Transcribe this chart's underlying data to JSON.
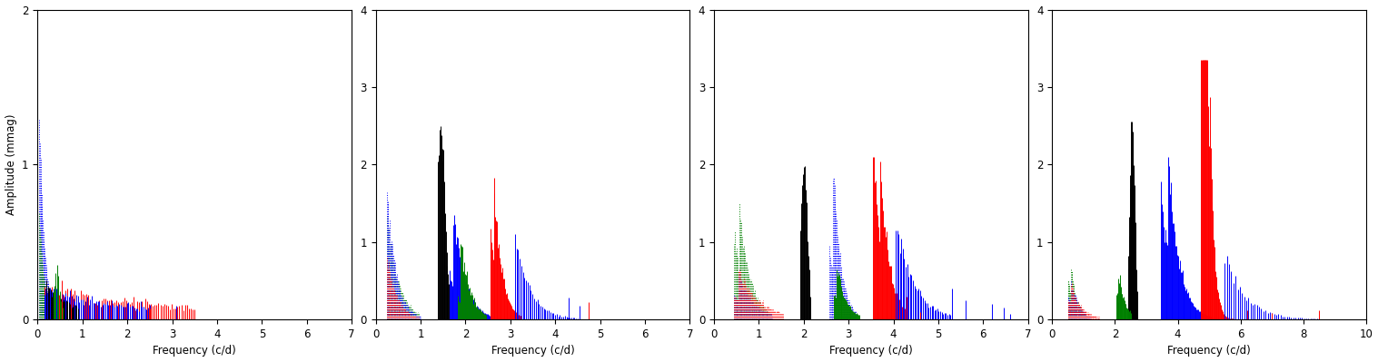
{
  "panels": [
    {
      "xlim": [
        0,
        7
      ],
      "ylim": [
        0,
        2
      ],
      "yticks": [
        0,
        1,
        2
      ],
      "xticks": [
        0,
        1,
        2,
        3,
        4,
        5,
        6,
        7
      ],
      "ylabel": "Amplitude (mmag)",
      "xlabel": "Frequency (c/d)"
    },
    {
      "xlim": [
        0,
        7
      ],
      "ylim": [
        0,
        4
      ],
      "yticks": [
        0,
        1,
        2,
        3,
        4
      ],
      "xticks": [
        0,
        1,
        2,
        3,
        4,
        5,
        6,
        7
      ],
      "ylabel": "",
      "xlabel": "Frequency (c/d)"
    },
    {
      "xlim": [
        0,
        7
      ],
      "ylim": [
        0,
        4
      ],
      "yticks": [
        0,
        1,
        2,
        3,
        4
      ],
      "xticks": [
        0,
        1,
        2,
        3,
        4,
        5,
        6,
        7
      ],
      "ylabel": "",
      "xlabel": "Frequency (c/d)"
    },
    {
      "xlim": [
        0,
        10
      ],
      "ylim": [
        0,
        4
      ],
      "yticks": [
        0,
        1,
        2,
        3,
        4
      ],
      "xticks": [
        0,
        2,
        4,
        6,
        8,
        10
      ],
      "ylabel": "",
      "xlabel": "Frequency (c/d)"
    }
  ],
  "fig_bgcolor": "#ffffff",
  "axes_bgcolor": "#ffffff",
  "fontsize": 8.5
}
